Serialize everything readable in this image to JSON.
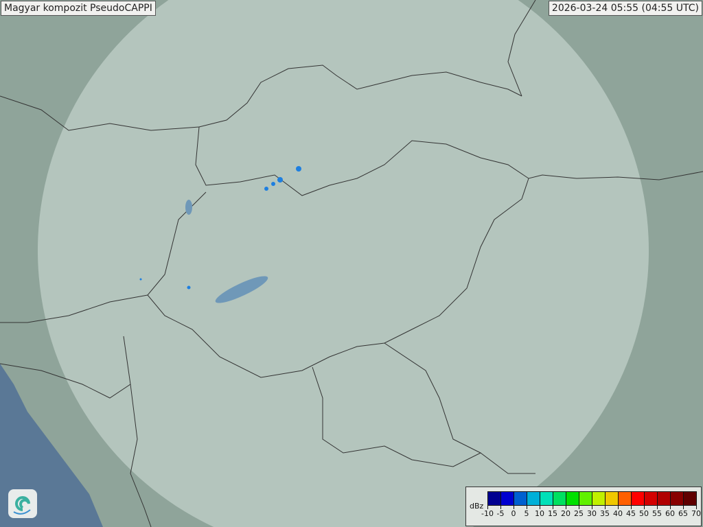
{
  "header": {
    "title": "Magyar kompozit  PseudoCAPPI",
    "timestamp": "2026-03-24 05:55 (04:55 UTC)"
  },
  "legend": {
    "unit": "dBz",
    "ticks": [
      "-10",
      "-5",
      "0",
      "5",
      "10",
      "15",
      "20",
      "25",
      "30",
      "35",
      "40",
      "45",
      "50",
      "55",
      "60",
      "65",
      "70"
    ],
    "colors": [
      "#000090",
      "#0000d0",
      "#0060d0",
      "#00b0d8",
      "#00e0b8",
      "#00e060",
      "#00e000",
      "#60f000",
      "#c0f000",
      "#f0c800",
      "#ff6000",
      "#ff0000",
      "#d40000",
      "#b00000",
      "#880000",
      "#600000"
    ]
  },
  "map": {
    "land_color": "#8fa49a",
    "coverage_color": "#c8d6d0",
    "sea_color": "#5a7896",
    "lake_color": "#6f98b8",
    "border_color": "#333333",
    "echo_color": "#1e7fe0"
  },
  "logo": {
    "icon": "weather-service-swirl-logo"
  }
}
